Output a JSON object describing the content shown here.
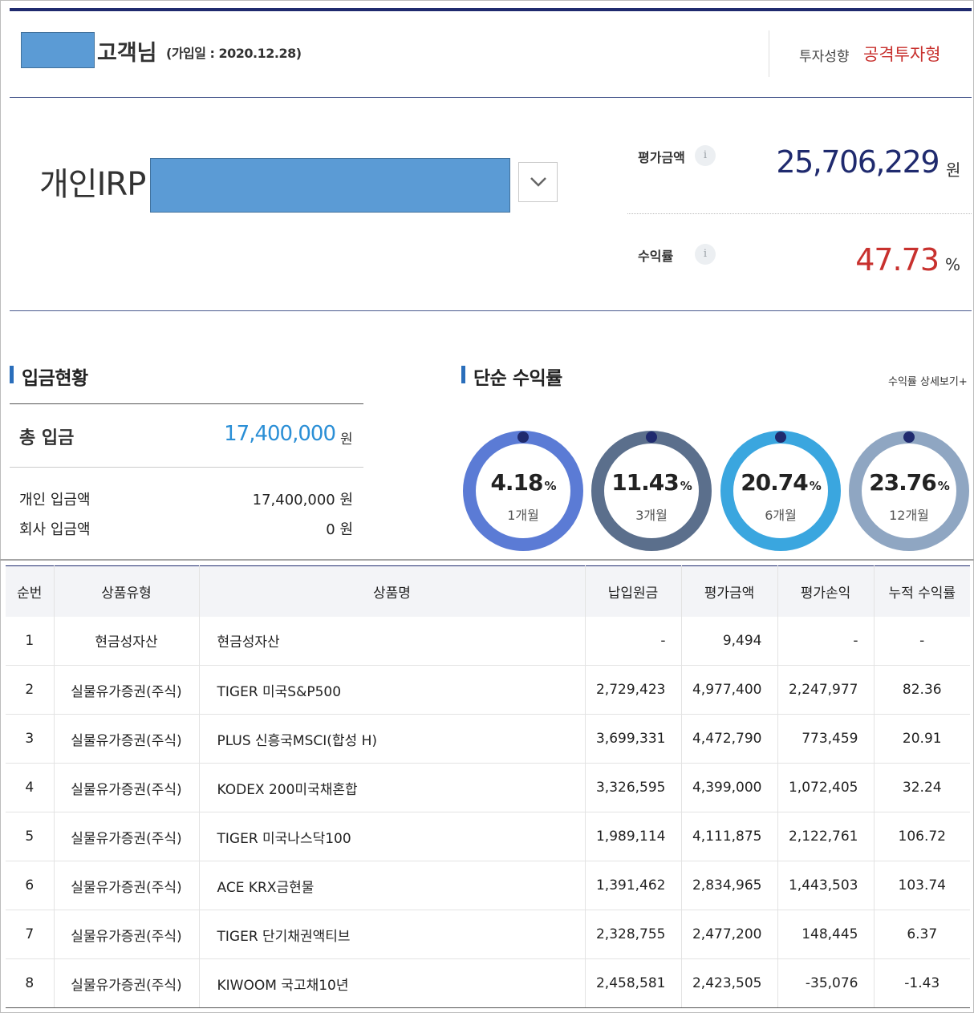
{
  "header": {
    "customer_suffix": "고객님",
    "join_date": "(가입일 : 2020.12.28)",
    "invest_type_label": "투자성향",
    "invest_type_value": "공격투자형",
    "colors": {
      "navy": "#1f2a6e",
      "red": "#c8312e",
      "mask": "#5b9bd5"
    }
  },
  "account": {
    "name": "개인IRP",
    "dropdown_icon": "chevron-down-icon",
    "eval_label": "평가금액",
    "eval_value": "25,706,229",
    "eval_unit": "원",
    "yield_label": "수익률",
    "yield_value": "47.73",
    "yield_unit": "%",
    "info_icon_glyph": "i"
  },
  "deposit": {
    "title": "입금현황",
    "total_label": "총 입금",
    "total_value": "17,400,000",
    "total_unit": "원",
    "rows": [
      {
        "label": "개인 입금액",
        "value": "17,400,000 원"
      },
      {
        "label": "회사 입금액",
        "value": "0 원"
      }
    ]
  },
  "returns": {
    "title": "단순 수익률",
    "detail_link": "수익률 상세보기+",
    "unit": "%",
    "rings": [
      {
        "value": "4.18",
        "period": "1개월",
        "color": "#5b7bd5"
      },
      {
        "value": "11.43",
        "period": "3개월",
        "color": "#5b6f8c"
      },
      {
        "value": "20.74",
        "period": "6개월",
        "color": "#3aa6df"
      },
      {
        "value": "23.76",
        "period": "12개월",
        "color": "#8fa6c2"
      }
    ]
  },
  "table": {
    "headers": [
      "순번",
      "상품유형",
      "상품명",
      "납입원금",
      "평가금액",
      "평가손익",
      "누적 수익률"
    ],
    "rows": [
      [
        "1",
        "현금성자산",
        "현금성자산",
        "-",
        "9,494",
        "-",
        "-"
      ],
      [
        "2",
        "실물유가증권(주식)",
        "TIGER 미국S&P500",
        "2,729,423",
        "4,977,400",
        "2,247,977",
        "82.36"
      ],
      [
        "3",
        "실물유가증권(주식)",
        "PLUS 신흥국MSCI(합성 H)",
        "3,699,331",
        "4,472,790",
        "773,459",
        "20.91"
      ],
      [
        "4",
        "실물유가증권(주식)",
        "KODEX 200미국채혼합",
        "3,326,595",
        "4,399,000",
        "1,072,405",
        "32.24"
      ],
      [
        "5",
        "실물유가증권(주식)",
        "TIGER 미국나스닥100",
        "1,989,114",
        "4,111,875",
        "2,122,761",
        "106.72"
      ],
      [
        "6",
        "실물유가증권(주식)",
        "ACE KRX금현물",
        "1,391,462",
        "2,834,965",
        "1,443,503",
        "103.74"
      ],
      [
        "7",
        "실물유가증권(주식)",
        "TIGER 단기채권액티브",
        "2,328,755",
        "2,477,200",
        "148,445",
        "6.37"
      ],
      [
        "8",
        "실물유가증권(주식)",
        "KIWOOM 국고채10년",
        "2,458,581",
        "2,423,505",
        "-35,076",
        "-1.43"
      ]
    ]
  }
}
